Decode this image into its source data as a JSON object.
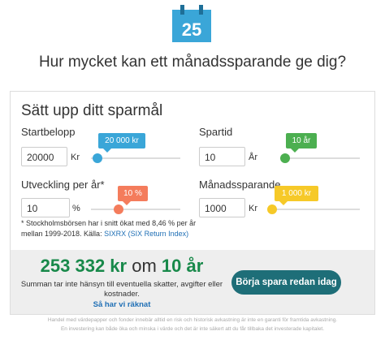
{
  "icon_day": "25",
  "title": "Hur mycket kan ett månadssparande ge dig?",
  "card": {
    "heading": "Sätt upp ditt sparmål",
    "fields": [
      {
        "label": "Startbelopp",
        "value": "20000",
        "unit": "Kr",
        "tooltip": "20 000 kr"
      },
      {
        "label": "Spartid",
        "value": "10",
        "unit": "År",
        "tooltip": "10 år"
      },
      {
        "label": "Utveckling per år*",
        "value": "10",
        "unit": "%",
        "tooltip": "10 %"
      },
      {
        "label": "Månadssparande",
        "value": "1000",
        "unit": "Kr",
        "tooltip": "1 000 kr"
      }
    ],
    "footnote": {
      "line1": "* Stockholmsbörsen har i snitt ökat med 8,46 % per år",
      "line2": "mellan 1999-2018. Källa:",
      "link": "SIXRX (SIX Return Index)"
    },
    "result": {
      "amount": "253 332 kr",
      "om": "om",
      "years": "10 år",
      "note_line1": "Summan tar inte hänsyn till eventuella skatter, avgifter eller",
      "note_line2": "kostnader.",
      "link": "Så har vi räknat",
      "button": "Börja spara redan idag"
    }
  },
  "disclaimer": {
    "line1": "Handel med värdepapper och fonder innebär alltid en risk och historisk avkastning är inte en garanti för framtida avkastning.",
    "line2": "En investering kan både öka och minska i värde och det är inte säkert att du får tillbaka det investerade kapitalet."
  }
}
